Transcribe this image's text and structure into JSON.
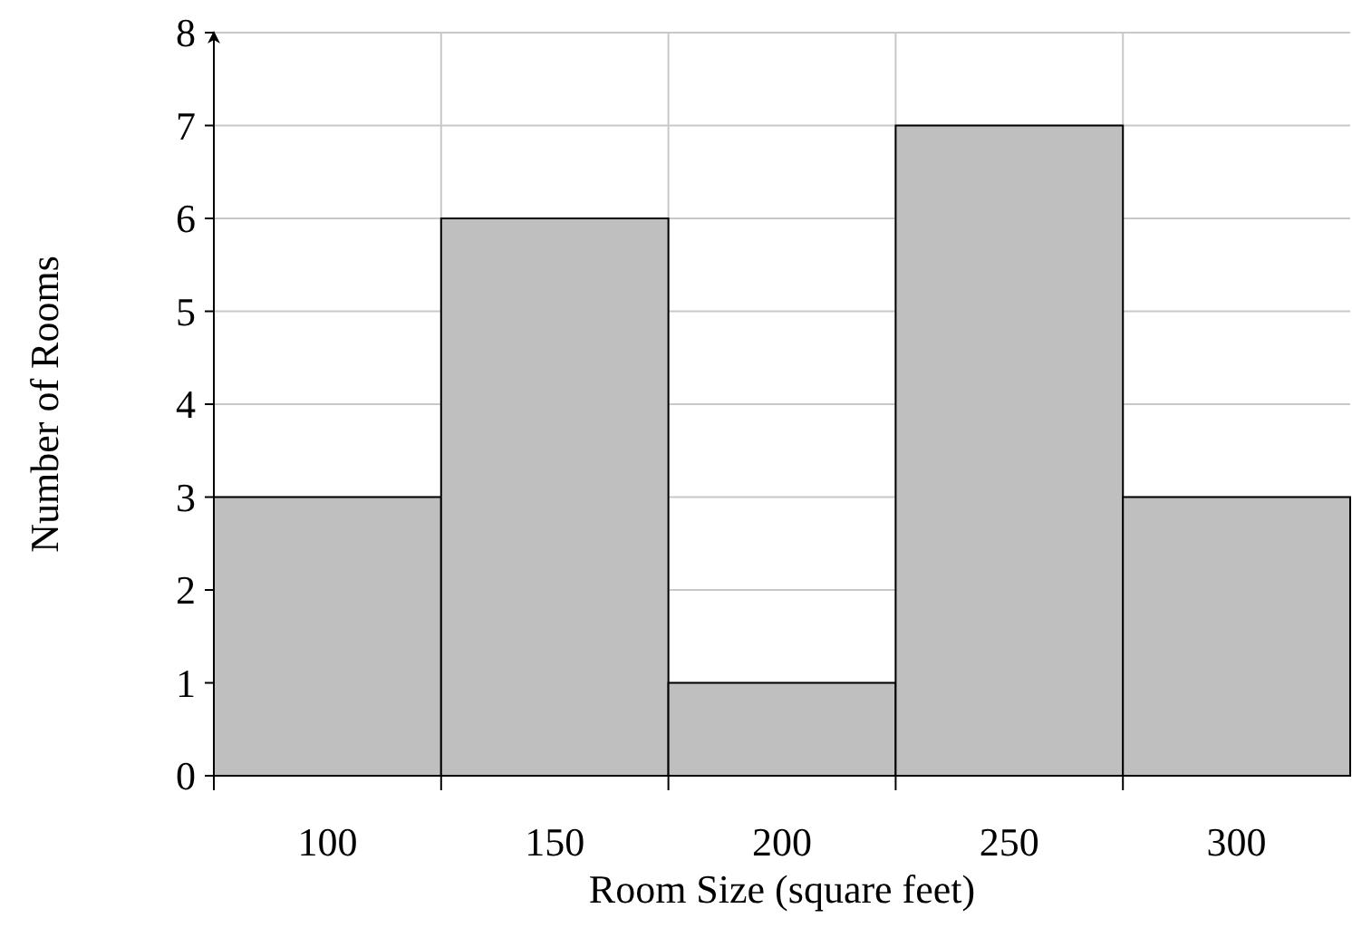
{
  "chart_data": {
    "type": "bar",
    "xlabel": "Room Size (square feet)",
    "ylabel": "Number of Rooms",
    "categories": [
      "100",
      "150",
      "200",
      "250",
      "300"
    ],
    "values": [
      3,
      6,
      1,
      7,
      3
    ],
    "color": "#bfbfbf",
    "ylim": [
      0,
      8
    ],
    "yticks": [
      0,
      1,
      2,
      3,
      4,
      5,
      6,
      7,
      8
    ],
    "grid": true
  }
}
